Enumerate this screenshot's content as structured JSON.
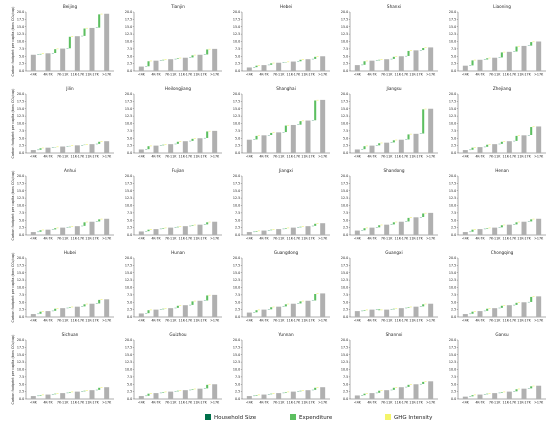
{
  "axes": {
    "categories": [
      "<4K",
      "4K-7K",
      "7K-11K",
      "11K-17K",
      "11K-17K",
      ">17K"
    ],
    "ylim": [
      0,
      20
    ],
    "yticks": [
      {
        "value": 0,
        "label": "0.0"
      },
      2.5,
      {
        "value": 5,
        "label": "5.0"
      },
      7.5,
      {
        "value": 10,
        "label": "10.0"
      },
      12.5,
      {
        "value": 15,
        "label": "15.0"
      },
      17.5,
      {
        "value": 20,
        "label": "20.0"
      }
    ],
    "ylabel": "Carbon footprint per capita (tons CO₂/cap)",
    "total_color": "#b0b0b0"
  },
  "legend": [
    {
      "name": "Household Size",
      "color": "#00704a"
    },
    {
      "name": "Expenditure",
      "color": "#5cbf60"
    },
    {
      "name": "GHG Intensity",
      "color": "#f4f46a"
    }
  ],
  "chart_data": [
    {
      "type": "waterfall",
      "title": "Beijing",
      "totals": [
        5.5,
        6.0,
        7.6,
        11.8,
        14.6,
        19.4
      ],
      "series": [
        [
          0.1,
          0.1,
          0.1,
          0.1,
          0.1
        ],
        [
          0.2,
          1.3,
          3.9,
          2.5,
          4.5
        ],
        [
          0.2,
          0.2,
          0.2,
          0.2,
          0.2
        ]
      ]
    },
    {
      "type": "waterfall",
      "title": "Tianjin",
      "totals": [
        1.5,
        3.5,
        4.0,
        4.5,
        5.5,
        7.5
      ],
      "series": [
        [
          0.1,
          0.1,
          0.1,
          0.1,
          0.1
        ],
        [
          1.7,
          0.2,
          0.2,
          0.7,
          1.7
        ],
        [
          0.2,
          0.2,
          0.2,
          0.2,
          0.2
        ]
      ]
    },
    {
      "type": "waterfall",
      "title": "Hebei",
      "totals": [
        1.2,
        2.0,
        2.8,
        3.2,
        4.0,
        5.0
      ],
      "series": [
        [
          0.1,
          0.1,
          0.1,
          0.1,
          0.1
        ],
        [
          0.5,
          0.5,
          0.1,
          0.5,
          0.7
        ],
        [
          0.2,
          0.2,
          0.2,
          0.2,
          0.2
        ]
      ]
    },
    {
      "type": "waterfall",
      "title": "Shanxi",
      "totals": [
        2.0,
        3.5,
        4.0,
        5.0,
        7.0,
        8.0
      ],
      "series": [
        [
          0.1,
          0.1,
          0.1,
          0.1,
          0.1
        ],
        [
          1.2,
          0.2,
          0.7,
          1.7,
          0.7
        ],
        [
          0.2,
          0.2,
          0.2,
          0.2,
          0.2
        ]
      ]
    },
    {
      "type": "waterfall",
      "title": "Liaoning",
      "totals": [
        1.8,
        3.8,
        4.5,
        6.5,
        8.5,
        10.0
      ],
      "series": [
        [
          0.1,
          0.1,
          0.1,
          0.1,
          0.1
        ],
        [
          1.7,
          0.4,
          1.7,
          1.7,
          1.2
        ],
        [
          0.2,
          0.2,
          0.2,
          0.2,
          0.2
        ]
      ]
    },
    {
      "type": "waterfall",
      "title": "Jilin",
      "totals": [
        1.0,
        1.8,
        2.2,
        2.6,
        3.0,
        4.0
      ],
      "series": [
        [
          0.1,
          0.1,
          0.1,
          0.1,
          0.1
        ],
        [
          0.5,
          0.1,
          0.1,
          0.1,
          0.7
        ],
        [
          0.2,
          0.2,
          0.2,
          0.2,
          0.2
        ]
      ]
    },
    {
      "type": "waterfall",
      "title": "Heilongjiang",
      "totals": [
        1.2,
        2.5,
        3.0,
        4.0,
        5.0,
        7.5
      ],
      "series": [
        [
          0.1,
          0.1,
          0.1,
          0.1,
          0.1
        ],
        [
          1.0,
          0.2,
          0.7,
          0.7,
          2.2
        ],
        [
          0.2,
          0.2,
          0.2,
          0.2,
          0.2
        ]
      ]
    },
    {
      "type": "waterfall",
      "title": "Shanghai",
      "totals": [
        4.5,
        6.0,
        7.0,
        9.5,
        11.0,
        18.0
      ],
      "series": [
        [
          0.1,
          0.1,
          0.1,
          0.1,
          0.1
        ],
        [
          1.2,
          0.7,
          2.2,
          1.2,
          6.7
        ],
        [
          0.2,
          0.2,
          0.2,
          0.2,
          0.2
        ]
      ]
    },
    {
      "type": "waterfall",
      "title": "Jiangsu",
      "totals": [
        1.2,
        2.5,
        3.5,
        4.5,
        6.5,
        15.0
      ],
      "series": [
        [
          0.1,
          0.1,
          0.1,
          0.1,
          0.1
        ],
        [
          1.0,
          0.7,
          0.7,
          1.7,
          8.2
        ],
        [
          0.2,
          0.2,
          0.2,
          0.2,
          0.2
        ]
      ]
    },
    {
      "type": "waterfall",
      "title": "Zhejiang",
      "totals": [
        1.0,
        2.0,
        3.0,
        4.0,
        6.0,
        9.0
      ],
      "series": [
        [
          0.1,
          0.1,
          0.1,
          0.1,
          0.1
        ],
        [
          0.7,
          0.7,
          0.7,
          1.7,
          2.7
        ],
        [
          0.2,
          0.2,
          0.2,
          0.2,
          0.2
        ]
      ]
    },
    {
      "type": "waterfall",
      "title": "Anhui",
      "totals": [
        1.0,
        1.8,
        2.5,
        3.0,
        4.5,
        5.5
      ],
      "series": [
        [
          0.1,
          0.1,
          0.1,
          0.1,
          0.1
        ],
        [
          0.5,
          0.4,
          0.2,
          1.2,
          0.7
        ],
        [
          0.2,
          0.2,
          0.2,
          0.2,
          0.2
        ]
      ]
    },
    {
      "type": "waterfall",
      "title": "Fujian",
      "totals": [
        1.2,
        2.0,
        2.5,
        3.0,
        3.5,
        4.5
      ],
      "series": [
        [
          0.1,
          0.1,
          0.1,
          0.1,
          0.1
        ],
        [
          0.5,
          0.2,
          0.2,
          0.2,
          0.7
        ],
        [
          0.2,
          0.2,
          0.2,
          0.2,
          0.2
        ]
      ]
    },
    {
      "type": "waterfall",
      "title": "Jiangxi",
      "totals": [
        1.0,
        1.5,
        2.0,
        2.5,
        3.0,
        4.0
      ],
      "series": [
        [
          0.1,
          0.1,
          0.1,
          0.1,
          0.1
        ],
        [
          0.2,
          0.2,
          0.2,
          0.2,
          0.7
        ],
        [
          0.2,
          0.2,
          0.2,
          0.2,
          0.2
        ]
      ]
    },
    {
      "type": "waterfall",
      "title": "Shandong",
      "totals": [
        1.5,
        2.5,
        3.5,
        4.5,
        6.0,
        7.5
      ],
      "series": [
        [
          0.1,
          0.1,
          0.1,
          0.1,
          0.1
        ],
        [
          0.7,
          0.7,
          0.7,
          1.2,
          1.2
        ],
        [
          0.2,
          0.2,
          0.2,
          0.2,
          0.2
        ]
      ]
    },
    {
      "type": "waterfall",
      "title": "Henan",
      "totals": [
        1.0,
        2.0,
        2.5,
        3.5,
        4.5,
        5.5
      ],
      "series": [
        [
          0.1,
          0.1,
          0.1,
          0.1,
          0.1
        ],
        [
          0.7,
          0.2,
          0.7,
          0.7,
          0.7
        ],
        [
          0.2,
          0.2,
          0.2,
          0.2,
          0.2
        ]
      ]
    },
    {
      "type": "waterfall",
      "title": "Hubei",
      "totals": [
        1.0,
        2.0,
        3.0,
        3.5,
        4.5,
        6.0
      ],
      "series": [
        [
          0.1,
          0.1,
          0.1,
          0.1,
          0.1
        ],
        [
          0.7,
          0.7,
          0.2,
          0.7,
          1.2
        ],
        [
          0.2,
          0.2,
          0.2,
          0.2,
          0.2
        ]
      ]
    },
    {
      "type": "waterfall",
      "title": "Hunan",
      "totals": [
        1.2,
        2.5,
        3.0,
        4.0,
        5.5,
        7.5
      ],
      "series": [
        [
          0.1,
          0.1,
          0.1,
          0.1,
          0.1
        ],
        [
          1.0,
          0.2,
          0.7,
          1.2,
          1.7
        ],
        [
          0.2,
          0.2,
          0.2,
          0.2,
          0.2
        ]
      ]
    },
    {
      "type": "waterfall",
      "title": "Guangdong",
      "totals": [
        1.5,
        2.5,
        3.5,
        4.5,
        5.5,
        8.0
      ],
      "series": [
        [
          0.1,
          0.1,
          0.1,
          0.1,
          0.1
        ],
        [
          0.7,
          0.7,
          0.7,
          0.7,
          2.2
        ],
        [
          0.2,
          0.2,
          0.2,
          0.2,
          0.2
        ]
      ]
    },
    {
      "type": "waterfall",
      "title": "Guangxi",
      "totals": [
        2.0,
        2.5,
        2.5,
        3.0,
        3.5,
        4.5
      ],
      "series": [
        [
          0.1,
          0.1,
          0.1,
          0.1,
          0.1
        ],
        [
          0.2,
          -0.3,
          0.2,
          0.2,
          0.7
        ],
        [
          0.2,
          0.2,
          0.2,
          0.2,
          0.2
        ]
      ]
    },
    {
      "type": "waterfall",
      "title": "Chongqing",
      "totals": [
        1.0,
        2.0,
        3.0,
        4.0,
        5.0,
        7.0
      ],
      "series": [
        [
          0.1,
          0.1,
          0.1,
          0.1,
          0.1
        ],
        [
          0.7,
          0.7,
          0.7,
          0.7,
          1.7
        ],
        [
          0.2,
          0.2,
          0.2,
          0.2,
          0.2
        ]
      ]
    },
    {
      "type": "waterfall",
      "title": "Sichuan",
      "totals": [
        1.0,
        1.5,
        2.0,
        2.5,
        3.0,
        4.0
      ],
      "series": [
        [
          0.1,
          0.1,
          0.1,
          0.1,
          0.1
        ],
        [
          0.2,
          0.2,
          0.2,
          0.2,
          0.7
        ],
        [
          0.2,
          0.2,
          0.2,
          0.2,
          0.2
        ]
      ]
    },
    {
      "type": "waterfall",
      "title": "Guizhou",
      "totals": [
        1.0,
        2.0,
        2.5,
        3.0,
        3.5,
        5.0
      ],
      "series": [
        [
          0.1,
          0.1,
          0.1,
          0.1,
          0.1
        ],
        [
          0.7,
          0.2,
          0.2,
          0.2,
          1.2
        ],
        [
          0.2,
          0.2,
          0.2,
          0.2,
          0.2
        ]
      ]
    },
    {
      "type": "waterfall",
      "title": "Yunnan",
      "totals": [
        1.0,
        1.5,
        2.0,
        2.5,
        3.0,
        4.0
      ],
      "series": [
        [
          0.1,
          0.1,
          0.1,
          0.1,
          0.1
        ],
        [
          0.2,
          0.2,
          0.2,
          0.2,
          0.7
        ],
        [
          0.2,
          0.2,
          0.2,
          0.2,
          0.2
        ]
      ]
    },
    {
      "type": "waterfall",
      "title": "Shannxi",
      "totals": [
        1.2,
        2.0,
        3.0,
        4.0,
        5.0,
        6.0
      ],
      "series": [
        [
          0.1,
          0.1,
          0.1,
          0.1,
          0.1
        ],
        [
          0.5,
          0.7,
          0.7,
          0.7,
          0.7
        ],
        [
          0.2,
          0.2,
          0.2,
          0.2,
          0.2
        ]
      ]
    },
    {
      "type": "waterfall",
      "title": "Gansu",
      "totals": [
        0.8,
        1.5,
        2.0,
        2.5,
        3.5,
        4.5
      ],
      "series": [
        [
          0.1,
          0.1,
          0.1,
          0.1,
          0.1
        ],
        [
          0.4,
          0.2,
          0.2,
          0.7,
          0.7
        ],
        [
          0.2,
          0.2,
          0.2,
          0.2,
          0.2
        ]
      ]
    }
  ]
}
